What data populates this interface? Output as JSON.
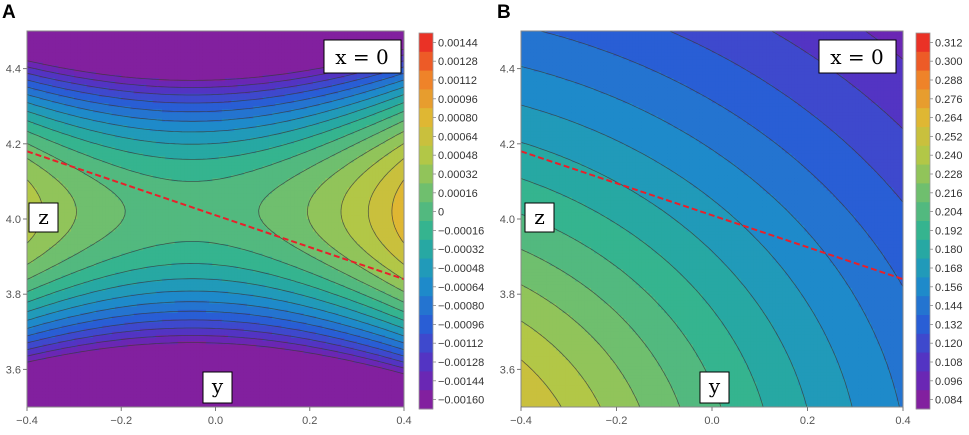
{
  "chart_data": [
    {
      "type": "heatmap",
      "panel": "A",
      "title": "",
      "annotation": "x = 0",
      "xlabel": "y",
      "ylabel": "z",
      "xlim": [
        -0.4,
        0.4
      ],
      "ylim": [
        3.5,
        4.5
      ],
      "x_ticks": [
        "−0.4",
        "−0.2",
        "0.0",
        "0.2",
        "0.4"
      ],
      "y_ticks": [
        "3.6",
        "3.8",
        "4.0",
        "4.2",
        "4.4"
      ],
      "colorbar": {
        "labels": [
          "0.00144",
          "0.00128",
          "0.00112",
          "0.00096",
          "0.00080",
          "0.00064",
          "0.00048",
          "0.00032",
          "0.00016",
          "0",
          "−0.00016",
          "−0.00032",
          "−0.00048",
          "−0.00064",
          "−0.00080",
          "−0.00096",
          "−0.00112",
          "−0.00128",
          "−0.00144",
          "−0.00160"
        ],
        "range": [
          -0.00168,
          0.00152
        ]
      },
      "red_line": {
        "x": [
          -0.4,
          0.4
        ],
        "y": [
          4.18,
          3.84
        ]
      },
      "field": {
        "kind": "saddle",
        "x0": -0.05,
        "z0": 4.02,
        "a": 0.004,
        "b": 0.0125
      }
    },
    {
      "type": "heatmap",
      "panel": "B",
      "title": "",
      "annotation": "x = 0",
      "xlabel": "y",
      "ylabel": "z",
      "xlim": [
        -0.4,
        0.4
      ],
      "ylim": [
        3.5,
        4.5
      ],
      "x_ticks": [
        "−0.4",
        "−0.2",
        "0.0",
        "0.2",
        "0.4"
      ],
      "y_ticks": [
        "3.6",
        "3.8",
        "4.0",
        "4.2",
        "4.4"
      ],
      "colorbar": {
        "labels": [
          "0.312",
          "0.300",
          "0.288",
          "0.276",
          "0.264",
          "0.252",
          "0.240",
          "0.228",
          "0.216",
          "0.204",
          "0.192",
          "0.180",
          "0.168",
          "0.156",
          "0.144",
          "0.132",
          "0.120",
          "0.108",
          "0.096",
          "0.084"
        ],
        "range": [
          0.078,
          0.318
        ]
      },
      "red_line": {
        "x": [
          -0.4,
          0.4
        ],
        "y": [
          4.18,
          3.84
        ]
      },
      "field": {
        "kind": "radial",
        "cx": -0.75,
        "cz": 3.3,
        "v0": 0.33,
        "slope": 0.19,
        "curv": 0.03
      }
    }
  ],
  "panels": {
    "A": {
      "letter": "A",
      "annotation": "x = 0",
      "xlabel": "y",
      "ylabel": "z"
    },
    "B": {
      "letter": "B",
      "annotation": "x = 0",
      "xlabel": "y",
      "ylabel": "z"
    }
  }
}
